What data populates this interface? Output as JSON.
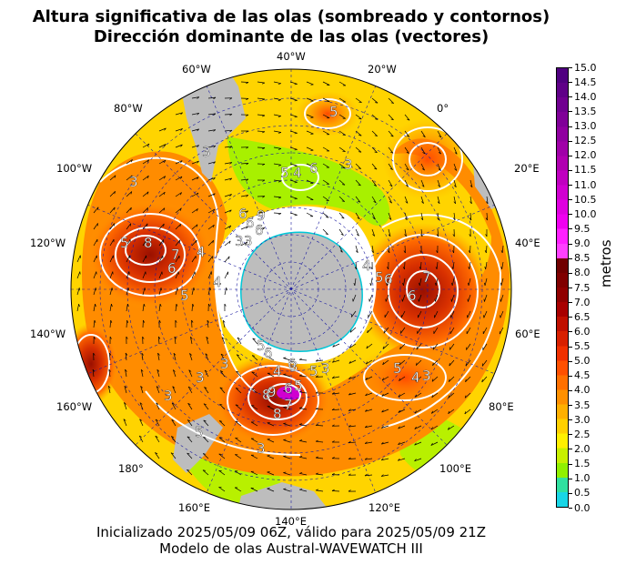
{
  "title": {
    "line1": "Altura significativa de las olas (sombreado y contornos)",
    "line2": "Dirección dominante de las olas (vectores)"
  },
  "footer": {
    "line1": "Inicializado 2025/05/09 06Z, válido para 2025/05/09 21Z",
    "line2": "Modelo de olas Austral-WAVEWATCH III"
  },
  "map": {
    "projection": "south-polar-stereographic",
    "longitude_labels": {
      "lon_40w": "40°W",
      "lon_20w": "20°W",
      "lon_0": "0°",
      "lon_20e": "20°E",
      "lon_40e": "40°E",
      "lon_60e": "60°E",
      "lon_80e": "80°E",
      "lon_100e": "100°E",
      "lon_120e": "120°E",
      "lon_140e": "140°E",
      "lon_160e": "160°E",
      "lon_180": "180°",
      "lon_160w": "160°W",
      "lon_140w": "140°W",
      "lon_120w": "120°W",
      "lon_100w": "100°W",
      "lon_80w": "80°W",
      "lon_60w": "60°W"
    },
    "contour_labels": [
      "3",
      "5",
      "6",
      "3",
      "4",
      "5",
      "6",
      "6",
      "3",
      "3",
      "5",
      "8",
      "7",
      "6",
      "5",
      "4",
      "3",
      "6",
      "9",
      "8",
      "6",
      "5",
      "4",
      "3",
      "3",
      "5",
      "6",
      "8",
      "9",
      "7",
      "6",
      "5",
      "4",
      "3",
      "3",
      "3",
      "5",
      "4",
      "5",
      "6",
      "7",
      "6",
      "5",
      "4",
      "3",
      "3"
    ],
    "colors": {
      "land": "#bdbdbd",
      "ocean_low": "#ffd400",
      "ocean_mid": "#ff8c00",
      "ocean_high": "#e34a00",
      "ocean_peak": "#b22000",
      "extreme": "#7a0000",
      "ice": "#ffffff",
      "contour": "#ffffff"
    }
  },
  "colorbar": {
    "label": "metros",
    "ticks": [
      "0.0",
      "0.5",
      "1.0",
      "1.5",
      "2.0",
      "2.5",
      "3.0",
      "3.5",
      "4.0",
      "4.5",
      "5.0",
      "5.5",
      "6.0",
      "6.5",
      "7.0",
      "7.5",
      "8.0",
      "8.5",
      "9.0",
      "9.5",
      "10.0",
      "10.5",
      "11.0",
      "11.5",
      "12.0",
      "12.5",
      "13.0",
      "13.5",
      "14.0",
      "14.5",
      "15.0"
    ],
    "colors": [
      "#19d6e6",
      "#30e0a0",
      "#90f000",
      "#c8f000",
      "#fff000",
      "#ffd000",
      "#ffb000",
      "#ff9000",
      "#ff7000",
      "#ff5000",
      "#f03000",
      "#d82000",
      "#c01000",
      "#a80000",
      "#900000",
      "#800000",
      "#700000",
      "#ff40ff",
      "#ff20ff",
      "#f000f0",
      "#e000e0",
      "#d000d0",
      "#c000c0",
      "#b000b0",
      "#a000a8",
      "#9000a0",
      "#800098",
      "#700090",
      "#600088",
      "#500080"
    ]
  }
}
